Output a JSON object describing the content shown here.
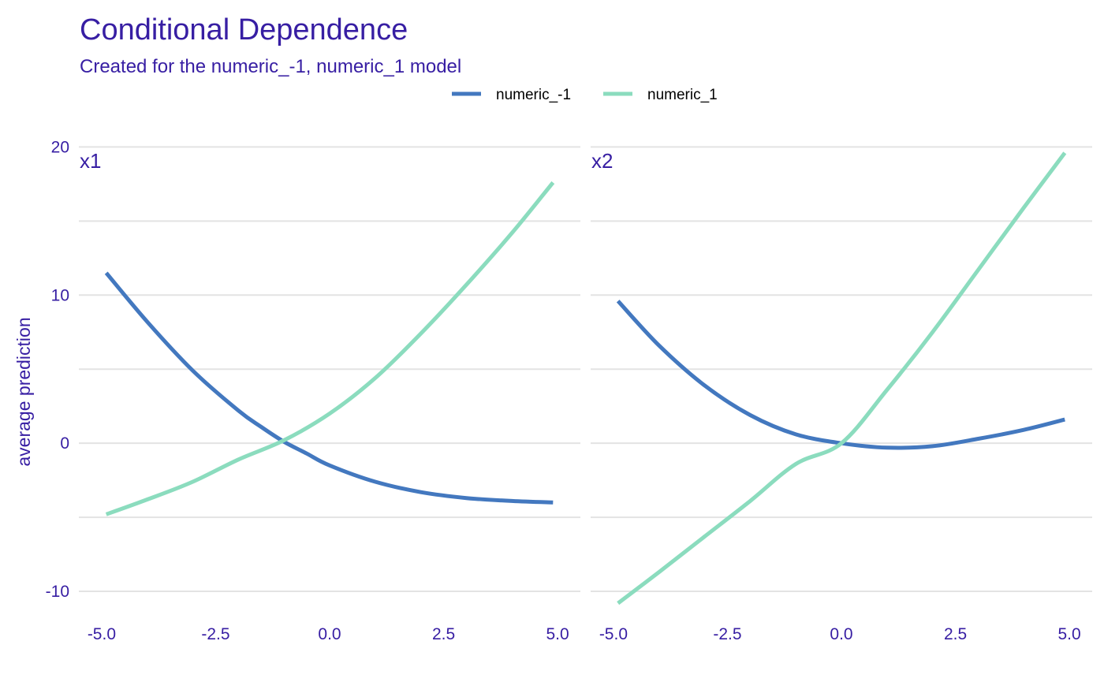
{
  "chart_data": {
    "type": "line",
    "title": "Conditional Dependence",
    "subtitle": "Created for the numeric_-1, numeric_1 model",
    "ylabel": "average prediction",
    "xlabel": "",
    "legend_position": "top",
    "grid": true,
    "ylim": [
      -12.5,
      20.5
    ],
    "yticks": [
      -10,
      0,
      10,
      20
    ],
    "yticks_labels": [
      "-10",
      "0",
      "10",
      "20"
    ],
    "xticks": [
      -5.0,
      -2.5,
      0.0,
      2.5,
      5.0
    ],
    "xticks_labels": [
      "-5.0",
      "-2.5",
      "0.0",
      "2.5",
      "5.0"
    ],
    "legend": [
      {
        "name": "numeric_-1",
        "color": "#4378bf"
      },
      {
        "name": "numeric_1",
        "color": "#8bdcbe"
      }
    ],
    "panels": [
      {
        "label": "x1",
        "xlim": [
          -5.5,
          5.5
        ],
        "series": [
          {
            "name": "numeric_-1",
            "color": "#4378bf",
            "x": [
              -4.9,
              -4.0,
              -3.0,
              -2.0,
              -1.5,
              -1.0,
              -0.5,
              0.0,
              1.0,
              2.0,
              3.0,
              4.0,
              4.9
            ],
            "y": [
              11.5,
              8.2,
              4.9,
              2.2,
              1.1,
              0.1,
              -0.7,
              -1.5,
              -2.6,
              -3.3,
              -3.7,
              -3.9,
              -4.0
            ]
          },
          {
            "name": "numeric_1",
            "color": "#8bdcbe",
            "x": [
              -4.9,
              -4.0,
              -3.0,
              -2.0,
              -1.0,
              0.0,
              1.0,
              2.0,
              3.0,
              4.0,
              4.9
            ],
            "y": [
              -4.8,
              -3.8,
              -2.6,
              -1.1,
              0.2,
              2.0,
              4.4,
              7.4,
              10.7,
              14.2,
              17.6
            ]
          }
        ]
      },
      {
        "label": "x2",
        "xlim": [
          -5.5,
          5.5
        ],
        "series": [
          {
            "name": "numeric_-1",
            "color": "#4378bf",
            "x": [
              -4.9,
              -4.0,
              -3.0,
              -2.0,
              -1.0,
              0.0,
              1.0,
              2.0,
              3.0,
              4.0,
              4.9
            ],
            "y": [
              9.6,
              6.6,
              3.9,
              1.9,
              0.6,
              0.0,
              -0.3,
              -0.2,
              0.3,
              0.9,
              1.6
            ]
          },
          {
            "name": "numeric_1",
            "color": "#8bdcbe",
            "x": [
              -4.9,
              -4.0,
              -3.0,
              -2.0,
              -1.0,
              0.0,
              1.0,
              2.0,
              3.0,
              4.0,
              4.9
            ],
            "y": [
              -10.8,
              -8.7,
              -6.3,
              -3.9,
              -1.4,
              0.0,
              3.6,
              7.5,
              11.7,
              15.9,
              19.6
            ]
          }
        ]
      }
    ]
  }
}
